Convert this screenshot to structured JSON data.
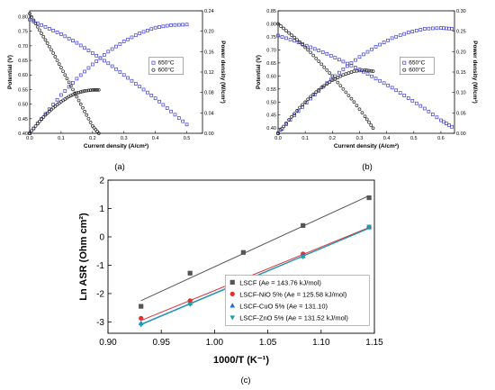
{
  "chart_data": [
    {
      "panel_label": "(a)",
      "type": "scatter",
      "xlabel": "Current density (A/cm²)",
      "ylabel": "Potential (V)",
      "y2label": "Power density (W/cm²)",
      "xlim": [
        0,
        0.55
      ],
      "ylim": [
        0.4,
        0.82
      ],
      "y2lim": [
        0,
        0.24
      ],
      "xticks": [
        "0.0",
        "0.1",
        "0.2",
        "0.3",
        "0.4",
        "0.5"
      ],
      "yticks": [
        "0.40",
        "0.45",
        "0.50",
        "0.55",
        "0.60",
        "0.65",
        "0.70",
        "0.75",
        "0.80"
      ],
      "y2ticks": [
        "0.00",
        "0.04",
        "0.08",
        "0.12",
        "0.16",
        "0.20",
        "0.24"
      ],
      "legend": {
        "position": "middle-right",
        "entries": [
          "650°C",
          "600°C"
        ]
      },
      "series": [
        {
          "name": "650°C",
          "marker": "square",
          "color": "#3b3bd6",
          "axis": "left",
          "type": "line",
          "x": [
            0,
            0.05,
            0.1,
            0.15,
            0.2,
            0.25,
            0.3,
            0.35,
            0.4,
            0.45,
            0.5
          ],
          "y": [
            0.79,
            0.765,
            0.74,
            0.71,
            0.675,
            0.64,
            0.6,
            0.56,
            0.52,
            0.475,
            0.43
          ]
        },
        {
          "name": "650°C",
          "marker": "square",
          "color": "#3b3bd6",
          "axis": "right",
          "type": "line",
          "x": [
            0,
            0.05,
            0.1,
            0.15,
            0.2,
            0.25,
            0.3,
            0.35,
            0.4,
            0.45,
            0.5
          ],
          "y": [
            0,
            0.038,
            0.075,
            0.107,
            0.135,
            0.16,
            0.18,
            0.196,
            0.207,
            0.212,
            0.213
          ]
        },
        {
          "name": "600°C",
          "marker": "circle",
          "color": "#222222",
          "axis": "left",
          "type": "line",
          "x": [
            0,
            0.025,
            0.05,
            0.075,
            0.1,
            0.125,
            0.15,
            0.175,
            0.2,
            0.22
          ],
          "y": [
            0.81,
            0.765,
            0.72,
            0.675,
            0.625,
            0.575,
            0.525,
            0.475,
            0.425,
            0.4
          ]
        },
        {
          "name": "600°C",
          "marker": "circle",
          "color": "#222222",
          "axis": "right",
          "type": "line",
          "x": [
            0,
            0.025,
            0.05,
            0.075,
            0.1,
            0.125,
            0.15,
            0.175,
            0.2,
            0.22
          ],
          "y": [
            0,
            0.019,
            0.036,
            0.05,
            0.062,
            0.072,
            0.079,
            0.083,
            0.085,
            0.085
          ]
        }
      ]
    },
    {
      "panel_label": "(b)",
      "type": "scatter",
      "xlabel": "Current density (A/cm²)",
      "ylabel": "Potential (V)",
      "y2label": "Power density (W/cm²)",
      "xlim": [
        0,
        0.65
      ],
      "ylim": [
        0.38,
        0.85
      ],
      "y2lim": [
        0,
        0.3
      ],
      "xticks": [
        "0.0",
        "0.1",
        "0.2",
        "0.3",
        "0.4",
        "0.5",
        "0.6"
      ],
      "yticks": [
        "0.40",
        "0.45",
        "0.50",
        "0.55",
        "0.60",
        "0.65",
        "0.70",
        "0.75",
        "0.80",
        "0.85"
      ],
      "y2ticks": [
        "0.00",
        "0.05",
        "0.10",
        "0.15",
        "0.20",
        "0.25",
        "0.30"
      ],
      "legend": {
        "position": "middle-right",
        "entries": [
          "650°C",
          "600°C"
        ]
      },
      "series": [
        {
          "name": "650°C",
          "marker": "square",
          "color": "#3b3bd6",
          "axis": "left",
          "type": "line",
          "x": [
            0,
            0.06,
            0.12,
            0.18,
            0.24,
            0.3,
            0.36,
            0.42,
            0.48,
            0.54,
            0.6,
            0.64
          ],
          "y": [
            0.755,
            0.735,
            0.71,
            0.685,
            0.655,
            0.625,
            0.59,
            0.555,
            0.515,
            0.475,
            0.43,
            0.405
          ]
        },
        {
          "name": "650°C",
          "marker": "square",
          "color": "#3b3bd6",
          "axis": "right",
          "type": "line",
          "x": [
            0,
            0.06,
            0.12,
            0.18,
            0.24,
            0.3,
            0.36,
            0.42,
            0.48,
            0.54,
            0.6,
            0.64
          ],
          "y": [
            0,
            0.044,
            0.085,
            0.123,
            0.157,
            0.187,
            0.212,
            0.233,
            0.247,
            0.256,
            0.258,
            0.256
          ]
        },
        {
          "name": "600°C",
          "marker": "circle",
          "color": "#222222",
          "axis": "left",
          "type": "line",
          "x": [
            0,
            0.04,
            0.08,
            0.12,
            0.16,
            0.2,
            0.24,
            0.28,
            0.32,
            0.35
          ],
          "y": [
            0.8,
            0.765,
            0.73,
            0.69,
            0.645,
            0.6,
            0.55,
            0.5,
            0.445,
            0.4
          ]
        },
        {
          "name": "600°C",
          "marker": "circle",
          "color": "#222222",
          "axis": "right",
          "type": "line",
          "x": [
            0,
            0.04,
            0.08,
            0.12,
            0.16,
            0.2,
            0.24,
            0.28,
            0.32,
            0.35
          ],
          "y": [
            0,
            0.033,
            0.063,
            0.09,
            0.112,
            0.13,
            0.143,
            0.152,
            0.155,
            0.152
          ]
        }
      ]
    },
    {
      "panel_label": "(c)",
      "type": "scatter",
      "xlabel": "1000/T (K⁻¹)",
      "ylabel": "Ln ASR (Ohm cm²)",
      "xlim": [
        0.9,
        1.15
      ],
      "ylim": [
        -3.4,
        2.0
      ],
      "xticks": [
        "0.90",
        "0.95",
        "1.00",
        "1.05",
        "1.10",
        "1.15"
      ],
      "yticks": [
        "-3",
        "-2",
        "-1",
        "0",
        "1",
        "2"
      ],
      "legend": {
        "position": "bottom-right",
        "entries": [
          "LSCF (Ae = 143.76 kJ/mol)",
          "LSCF-NiO 5% (Ae = 125.58 kJ/mol)",
          "LSCF-CuO 5% (Ae = 131.10)",
          "LSCF-ZnO 5% (Ae = 131.52 kJ/mol)"
        ]
      },
      "series": [
        {
          "name": "LSCF (Ae = 143.76 kJ/mol)",
          "marker": "square",
          "color": "#555555",
          "x": [
            0.931,
            0.977,
            1.027,
            1.083,
            1.145
          ],
          "y": [
            -2.45,
            -1.28,
            -0.55,
            0.4,
            1.38
          ],
          "fit": [
            [
              0.931,
              -2.25
            ],
            [
              1.145,
              1.45
            ]
          ]
        },
        {
          "name": "LSCF-NiO 5% (Ae = 125.58 kJ/mol)",
          "marker": "circle",
          "color": "#e03030",
          "x": [
            0.931,
            0.977,
            1.027,
            1.083,
            1.145
          ],
          "y": [
            -2.87,
            -2.25,
            -1.45,
            -0.6,
            0.35
          ],
          "fit": [
            [
              0.931,
              -2.95
            ],
            [
              1.145,
              0.33
            ]
          ]
        },
        {
          "name": "LSCF-CuO 5% (Ae = 131.10)",
          "marker": "triangle-up",
          "color": "#1e6fd0",
          "x": [
            0.931,
            0.977,
            1.027,
            1.083,
            1.145
          ],
          "y": [
            -3.05,
            -2.35,
            -1.58,
            -0.68,
            0.33
          ],
          "fit": [
            [
              0.931,
              -3.08
            ],
            [
              1.145,
              0.31
            ]
          ]
        },
        {
          "name": "LSCF-ZnO 5% (Ae = 131.52 kJ/mol)",
          "marker": "triangle-down",
          "color": "#1aa3a3",
          "x": [
            0.931,
            0.977,
            1.027,
            1.083,
            1.145
          ],
          "y": [
            -3.1,
            -2.38,
            -1.6,
            -0.7,
            0.36
          ],
          "fit": [
            [
              0.931,
              -3.1
            ],
            [
              1.145,
              0.3
            ]
          ]
        }
      ]
    }
  ]
}
